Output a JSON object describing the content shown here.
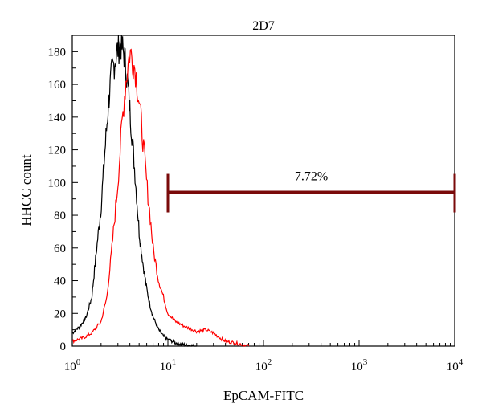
{
  "chart_data": {
    "type": "line",
    "title": "2D7",
    "xlabel": "EpCAM-FITC",
    "ylabel": "HHCC count",
    "xscale": "log",
    "xlim": [
      1,
      10000
    ],
    "ylim": [
      0,
      190
    ],
    "x_ticks": [
      {
        "value": 1,
        "base": "10",
        "exp": "0"
      },
      {
        "value": 10,
        "base": "10",
        "exp": "1"
      },
      {
        "value": 100,
        "base": "10",
        "exp": "2"
      },
      {
        "value": 1000,
        "base": "10",
        "exp": "3"
      },
      {
        "value": 10000,
        "base": "10",
        "exp": "4"
      }
    ],
    "y_ticks": [
      "0",
      "20",
      "40",
      "60",
      "80",
      "100",
      "120",
      "140",
      "160",
      "180"
    ],
    "grid": false,
    "series": [
      {
        "color": "#000000",
        "x": [
          1.0,
          1.2,
          1.4,
          1.6,
          1.8,
          2.0,
          2.2,
          2.4,
          2.6,
          2.8,
          3.0,
          3.2,
          3.5,
          3.8,
          4.2,
          4.6,
          5.0,
          5.5,
          6.0,
          6.5,
          7.0,
          8.0,
          9.0,
          10.0,
          11.0,
          12.0,
          14.0,
          20.0
        ],
        "y": [
          8,
          12,
          18,
          30,
          60,
          85,
          120,
          150,
          168,
          175,
          182,
          185,
          178,
          160,
          130,
          100,
          70,
          50,
          35,
          25,
          18,
          10,
          6,
          4,
          3,
          2,
          1,
          0
        ]
      },
      {
        "color": "#ff0000",
        "x": [
          1.0,
          1.3,
          1.6,
          2.0,
          2.3,
          2.6,
          3.0,
          3.3,
          3.6,
          4.0,
          4.3,
          4.6,
          5.0,
          5.5,
          6.0,
          6.5,
          7.0,
          8.0,
          9.0,
          10.0,
          12.0,
          15.0,
          20.0,
          25.0,
          30.0,
          35.0,
          40.0,
          50.0,
          60.0,
          70.0
        ],
        "y": [
          3,
          5,
          8,
          15,
          30,
          60,
          100,
          135,
          160,
          180,
          175,
          168,
          150,
          125,
          100,
          80,
          60,
          40,
          30,
          20,
          15,
          12,
          9,
          10,
          8,
          5,
          3,
          2,
          1,
          0
        ]
      }
    ],
    "annotations": [
      {
        "type": "gate",
        "label": "7.72%",
        "x_start": 10,
        "x_end": 10000,
        "y": 94,
        "color": "#7a0a0a"
      }
    ]
  }
}
